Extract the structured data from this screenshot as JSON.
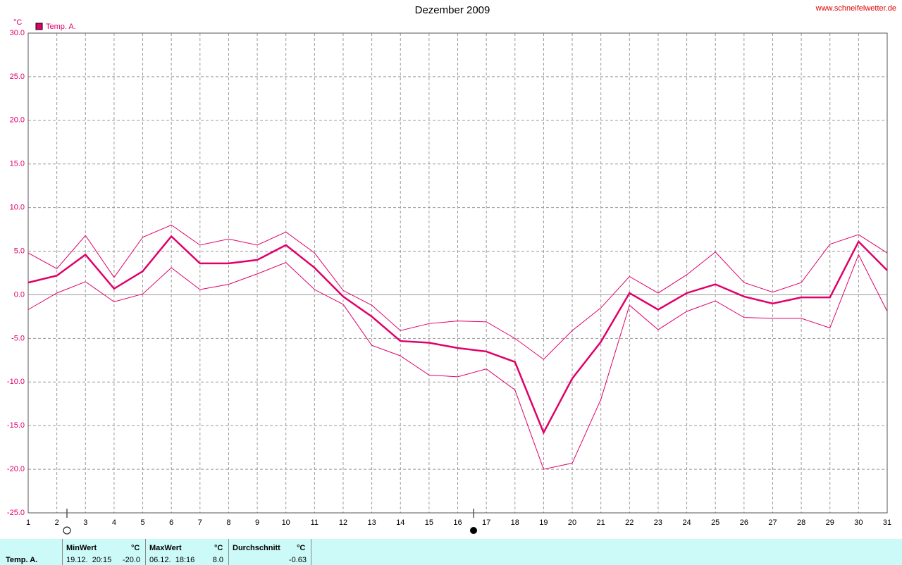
{
  "chart_data": {
    "type": "line",
    "title": "Dezember 2009",
    "source": "www.schneifelwetter.de",
    "y_unit": "°C",
    "legend": "upper left",
    "x": [
      1,
      2,
      3,
      4,
      5,
      6,
      7,
      8,
      9,
      10,
      11,
      12,
      13,
      14,
      15,
      16,
      17,
      18,
      19,
      20,
      21,
      22,
      23,
      24,
      25,
      26,
      27,
      28,
      29,
      30,
      31
    ],
    "xlim": [
      1,
      31
    ],
    "xticks": [
      1,
      2,
      3,
      4,
      5,
      6,
      7,
      8,
      9,
      10,
      11,
      12,
      13,
      14,
      15,
      16,
      17,
      18,
      19,
      20,
      21,
      22,
      23,
      24,
      25,
      26,
      27,
      28,
      29,
      30,
      31
    ],
    "ylim": [
      -25,
      30
    ],
    "yticks": [
      {
        "value": 30,
        "label": "30.0"
      },
      {
        "value": 25,
        "label": "25.0"
      },
      {
        "value": 20,
        "label": "20.0"
      },
      {
        "value": 15,
        "label": "15.0"
      },
      {
        "value": 10,
        "label": "10.0"
      },
      {
        "value": 5,
        "label": "5.0"
      },
      {
        "value": 0,
        "label": "0.0"
      },
      {
        "value": -5,
        "label": "-5.0"
      },
      {
        "value": -10,
        "label": "-10.0"
      },
      {
        "value": -15,
        "label": "-15.0"
      },
      {
        "value": -20,
        "label": "-20.0"
      },
      {
        "value": -25,
        "label": "-25.0"
      }
    ],
    "grid": true,
    "series": [
      {
        "name": "Temp. A.",
        "color": "#e0006a",
        "values": [
          1.4,
          2.2,
          4.6,
          0.7,
          2.7,
          6.7,
          3.6,
          3.6,
          4.0,
          5.7,
          3.1,
          -0.2,
          -2.5,
          -5.3,
          -5.5,
          -6.1,
          -6.5,
          -7.7,
          -15.8,
          -9.6,
          -5.4,
          0.2,
          -1.7,
          0.2,
          1.2,
          -0.2,
          -1.0,
          -0.3,
          -0.3,
          6.1,
          2.8
        ]
      },
      {
        "color": "#e0006a",
        "values": [
          4.8,
          3.0,
          6.8,
          2.0,
          6.6,
          8.0,
          5.7,
          6.4,
          5.7,
          7.2,
          4.8,
          0.5,
          -1.2,
          -4.1,
          -3.3,
          -3.0,
          -3.1,
          -5.0,
          -7.4,
          -4.1,
          -1.5,
          2.1,
          0.2,
          2.3,
          4.9,
          1.4,
          0.3,
          1.4,
          5.8,
          6.9,
          4.8
        ]
      },
      {
        "color": "#e0006a",
        "values": [
          -1.7,
          0.2,
          1.5,
          -0.8,
          0.1,
          3.1,
          0.6,
          1.2,
          2.4,
          3.7,
          0.6,
          -1.1,
          -5.8,
          -7.0,
          -9.2,
          -9.4,
          -8.5,
          -10.9,
          -20.0,
          -19.3,
          -12.0,
          -1.2,
          -4.0,
          -1.9,
          -0.7,
          -2.6,
          -2.7,
          -2.7,
          -3.8,
          4.6,
          -1.9
        ]
      }
    ]
  },
  "stats": {
    "row_label": "Temp. A.",
    "columns": [
      {
        "header": "MinWert",
        "unit": "°C",
        "time": "19.12.  20:15",
        "value": "-20.0"
      },
      {
        "header": "MaxWert",
        "unit": "°C",
        "time": "06.12.  18:16",
        "value": "8.0"
      },
      {
        "header": "Durchschnitt",
        "unit": "°C",
        "value": "-0.63"
      }
    ]
  }
}
